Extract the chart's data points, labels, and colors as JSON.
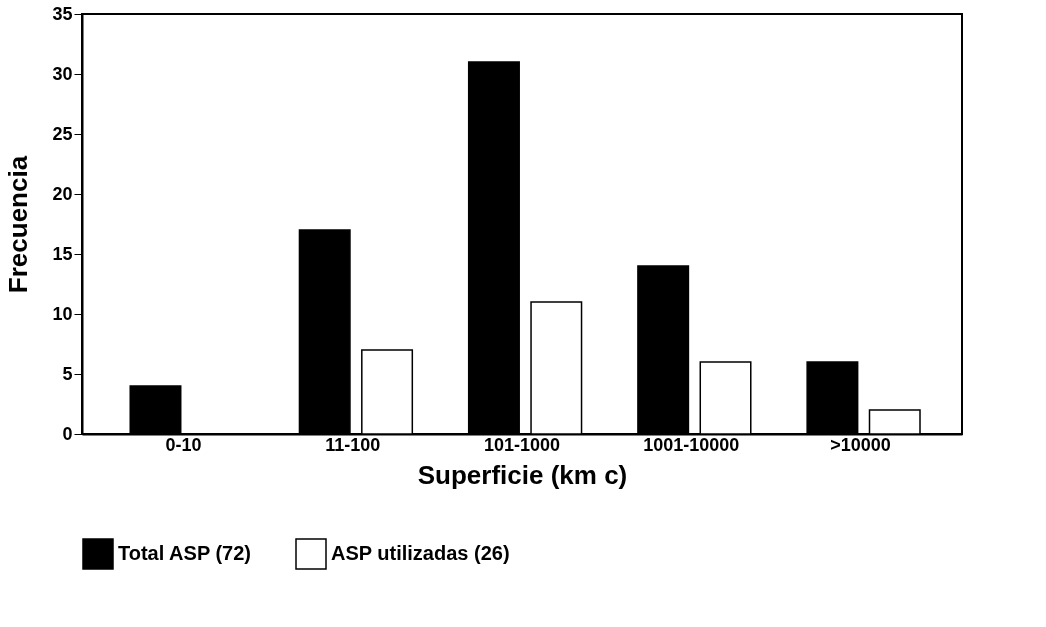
{
  "chart_data": {
    "type": "bar",
    "xlabel": "Superficie (km c)",
    "ylabel": "Frecuencia",
    "categories": [
      "0-10",
      "11-100",
      "101-1000",
      "1001-10000",
      ">10000"
    ],
    "series": [
      {
        "name": "Total ASP (72)",
        "color": "#000000",
        "values": [
          4,
          17,
          31,
          14,
          6
        ]
      },
      {
        "name": "ASP utilizadas (26)",
        "color": "#ffffff",
        "values": [
          null,
          7,
          11,
          6,
          2
        ]
      }
    ],
    "ylim": [
      0,
      35
    ],
    "yticks": [
      0,
      5,
      10,
      15,
      20,
      25,
      30,
      35
    ],
    "grid": false,
    "legend": "bottom"
  }
}
